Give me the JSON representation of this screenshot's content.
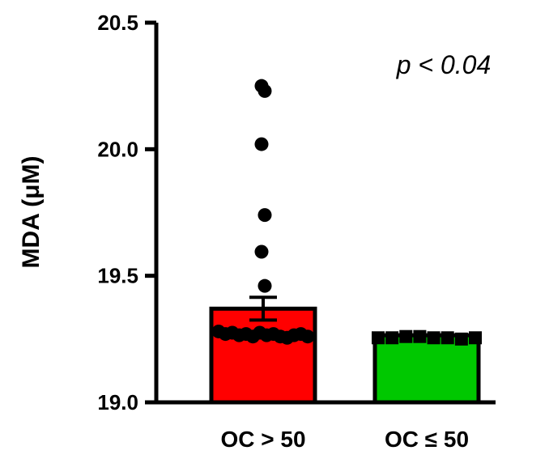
{
  "chart_data": {
    "type": "bar",
    "ylabel": "MDA (μM)",
    "ylim": [
      19.0,
      20.5
    ],
    "yticks": [
      "19.0",
      "19.5",
      "20.0",
      "20.5"
    ],
    "categories": [
      "OC > 50",
      "OC ≤ 50"
    ],
    "values": [
      19.37,
      19.265
    ],
    "error_sem": [
      0.045,
      0.004
    ],
    "bar_colors": [
      "#ff0000",
      "#00c800"
    ],
    "points": [
      {
        "category": "OC > 50",
        "marker": "circle",
        "values": [
          20.25,
          20.23,
          20.02,
          19.74,
          19.595,
          19.46,
          19.28,
          19.27,
          19.275,
          19.265,
          19.27,
          19.26,
          19.275,
          19.265,
          19.27,
          19.26,
          19.255,
          19.265,
          19.27,
          19.26
        ]
      },
      {
        "category": "OC ≤ 50",
        "marker": "square",
        "values": [
          19.255,
          19.255,
          19.26,
          19.26,
          19.255,
          19.255,
          19.25,
          19.255
        ]
      }
    ],
    "annotation": "p < 0.04",
    "grid": false
  }
}
